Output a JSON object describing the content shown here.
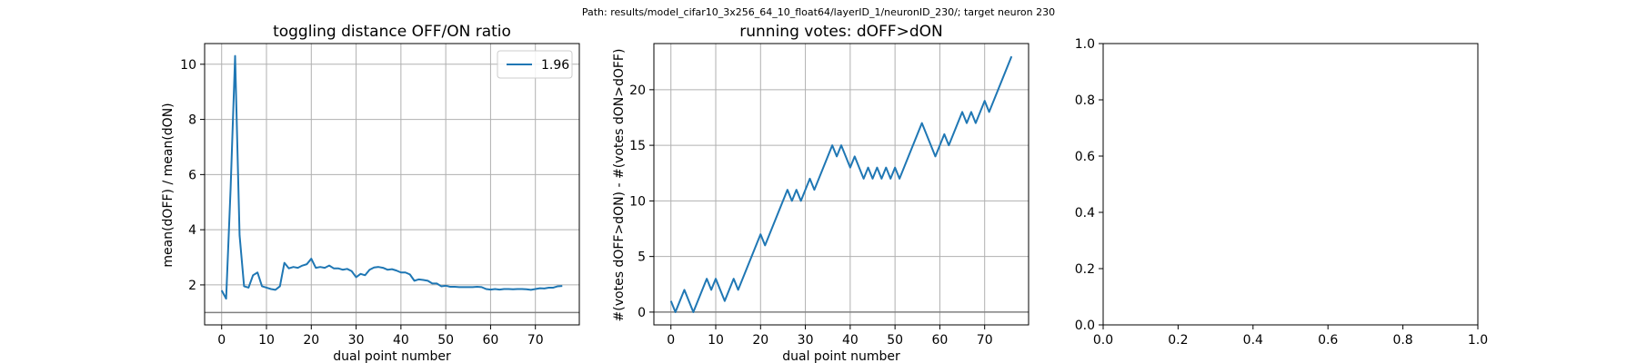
{
  "figure": {
    "suptitle": "Path: results/model_cifar10_3x256_64_10_float64/layerID_1/neuronID_230/; target neuron 230"
  },
  "chart_data": [
    {
      "type": "line",
      "title": "toggling distance OFF/ON ratio",
      "xlabel": "dual point number",
      "ylabel": "mean(dOFF) / mean(dON)",
      "xlim": [
        -3.8,
        79.8
      ],
      "ylim": [
        0.55,
        10.75
      ],
      "xticks": [
        0,
        10,
        20,
        30,
        40,
        50,
        60,
        70
      ],
      "yticks": [
        2,
        4,
        6,
        8,
        10
      ],
      "grid": true,
      "legend": {
        "position": "top-right",
        "entries": [
          "1.96"
        ]
      },
      "hline": {
        "y": 1.0,
        "color": "#808080"
      },
      "series": [
        {
          "name": "1.96",
          "color": "#1f77b4",
          "x": [
            0,
            1,
            2,
            3,
            4,
            5,
            6,
            7,
            8,
            9,
            10,
            11,
            12,
            13,
            14,
            15,
            16,
            17,
            18,
            19,
            20,
            21,
            22,
            23,
            24,
            25,
            26,
            27,
            28,
            29,
            30,
            31,
            32,
            33,
            34,
            35,
            36,
            37,
            38,
            39,
            40,
            41,
            42,
            43,
            44,
            45,
            46,
            47,
            48,
            49,
            50,
            51,
            52,
            53,
            54,
            55,
            56,
            57,
            58,
            59,
            60,
            61,
            62,
            63,
            64,
            65,
            66,
            67,
            68,
            69,
            70,
            71,
            72,
            73,
            74,
            75,
            76
          ],
          "values": [
            1.8,
            1.5,
            5.5,
            10.3,
            3.8,
            1.95,
            1.9,
            2.35,
            2.45,
            1.95,
            1.9,
            1.85,
            1.82,
            1.95,
            2.8,
            2.6,
            2.65,
            2.62,
            2.7,
            2.75,
            2.95,
            2.62,
            2.65,
            2.62,
            2.7,
            2.6,
            2.6,
            2.55,
            2.58,
            2.5,
            2.28,
            2.4,
            2.35,
            2.55,
            2.63,
            2.65,
            2.62,
            2.55,
            2.57,
            2.52,
            2.45,
            2.45,
            2.38,
            2.15,
            2.2,
            2.18,
            2.15,
            2.05,
            2.05,
            1.95,
            1.97,
            1.93,
            1.93,
            1.92,
            1.92,
            1.92,
            1.92,
            1.93,
            1.92,
            1.85,
            1.83,
            1.85,
            1.83,
            1.85,
            1.85,
            1.84,
            1.85,
            1.85,
            1.84,
            1.82,
            1.85,
            1.88,
            1.87,
            1.9,
            1.9,
            1.95,
            1.96
          ]
        }
      ]
    },
    {
      "type": "line",
      "title": "running votes: dOFF>dON",
      "xlabel": "dual point number",
      "ylabel": "#(votes dOFF>dON) - #(votes dON>dOFF)",
      "xlim": [
        -3.8,
        79.8
      ],
      "ylim": [
        -1.15,
        24.15
      ],
      "xticks": [
        0,
        10,
        20,
        30,
        40,
        50,
        60,
        70
      ],
      "yticks": [
        0,
        5,
        10,
        15,
        20
      ],
      "grid": true,
      "hline": {
        "y": 0,
        "color": "#808080"
      },
      "series": [
        {
          "color": "#1f77b4",
          "x": [
            0,
            1,
            2,
            3,
            4,
            5,
            6,
            7,
            8,
            9,
            10,
            11,
            12,
            13,
            14,
            15,
            16,
            17,
            18,
            19,
            20,
            21,
            22,
            23,
            24,
            25,
            26,
            27,
            28,
            29,
            30,
            31,
            32,
            33,
            34,
            35,
            36,
            37,
            38,
            39,
            40,
            41,
            42,
            43,
            44,
            45,
            46,
            47,
            48,
            49,
            50,
            51,
            52,
            53,
            54,
            55,
            56,
            57,
            58,
            59,
            60,
            61,
            62,
            63,
            64,
            65,
            66,
            67,
            68,
            69,
            70,
            71,
            72,
            73,
            74,
            75,
            76
          ],
          "values": [
            1,
            0,
            1,
            2,
            1,
            0,
            1,
            2,
            3,
            2,
            3,
            2,
            1,
            2,
            3,
            2,
            3,
            4,
            5,
            6,
            7,
            6,
            7,
            8,
            9,
            10,
            11,
            10,
            11,
            10,
            11,
            12,
            11,
            12,
            13,
            14,
            15,
            14,
            15,
            14,
            13,
            14,
            13,
            12,
            13,
            12,
            13,
            12,
            13,
            12,
            13,
            12,
            13,
            14,
            15,
            16,
            17,
            16,
            15,
            14,
            15,
            16,
            15,
            16,
            17,
            18,
            17,
            18,
            17,
            18,
            19,
            18,
            19,
            20,
            21,
            22,
            23
          ]
        }
      ]
    },
    {
      "type": "line",
      "title": "",
      "xlabel": "",
      "ylabel": "",
      "xlim": [
        0,
        1
      ],
      "ylim": [
        0,
        1
      ],
      "xticks": [
        0,
        0.2,
        0.4,
        0.6,
        0.8,
        1
      ],
      "yticks": [
        0,
        0.2,
        0.4,
        0.6,
        0.8,
        1
      ],
      "xtick_labels": [
        "0.0",
        "0.2",
        "0.4",
        "0.6",
        "0.8",
        "1.0"
      ],
      "ytick_labels": [
        "0.0",
        "0.2",
        "0.4",
        "0.6",
        "0.8",
        "1.0"
      ],
      "grid": false,
      "series": []
    }
  ]
}
